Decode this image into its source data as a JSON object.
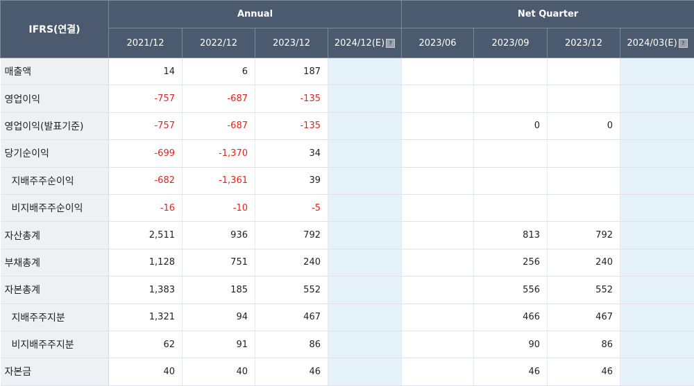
{
  "header": {
    "corner": "IFRS(연결)",
    "annual": "Annual",
    "quarter": "Net Quarter",
    "annual_cols": [
      "2021/12",
      "2022/12",
      "2023/12",
      "2024/12(E)"
    ],
    "quarter_cols": [
      "2023/06",
      "2023/09",
      "2023/12",
      "2024/03(E)"
    ]
  },
  "rows": [
    {
      "label": "매출액",
      "sub": false,
      "cells": [
        "14",
        "6",
        "187",
        "",
        "",
        "",
        "",
        ""
      ]
    },
    {
      "label": "영업이익",
      "sub": false,
      "cells": [
        "-757",
        "-687",
        "-135",
        "",
        "",
        "",
        "",
        ""
      ]
    },
    {
      "label": "영업이익(발표기준)",
      "sub": false,
      "cells": [
        "-757",
        "-687",
        "-135",
        "",
        "",
        "0",
        "0",
        ""
      ]
    },
    {
      "label": "당기순이익",
      "sub": false,
      "cells": [
        "-699",
        "-1,370",
        "34",
        "",
        "",
        "",
        "",
        ""
      ]
    },
    {
      "label": "지배주주순이익",
      "sub": true,
      "cells": [
        "-682",
        "-1,361",
        "39",
        "",
        "",
        "",
        "",
        ""
      ]
    },
    {
      "label": "비지배주주순이익",
      "sub": true,
      "cells": [
        "-16",
        "-10",
        "-5",
        "",
        "",
        "",
        "",
        ""
      ]
    },
    {
      "label": "자산총계",
      "sub": false,
      "cells": [
        "2,511",
        "936",
        "792",
        "",
        "",
        "813",
        "792",
        ""
      ]
    },
    {
      "label": "부채총계",
      "sub": false,
      "cells": [
        "1,128",
        "751",
        "240",
        "",
        "",
        "256",
        "240",
        ""
      ]
    },
    {
      "label": "자본총계",
      "sub": false,
      "cells": [
        "1,383",
        "185",
        "552",
        "",
        "",
        "556",
        "552",
        ""
      ]
    },
    {
      "label": "지배주주지분",
      "sub": true,
      "cells": [
        "1,321",
        "94",
        "467",
        "",
        "",
        "466",
        "467",
        ""
      ]
    },
    {
      "label": "비지배주주지분",
      "sub": true,
      "cells": [
        "62",
        "91",
        "86",
        "",
        "",
        "90",
        "86",
        ""
      ]
    },
    {
      "label": "자본금",
      "sub": false,
      "cells": [
        "40",
        "40",
        "46",
        "",
        "",
        "46",
        "46",
        ""
      ]
    }
  ],
  "colors": {
    "header_bg": "#4b5a6e",
    "negative": "#e2231a",
    "estimate_bg": "#e6f2f9",
    "label_bg": "#eef0f4"
  }
}
